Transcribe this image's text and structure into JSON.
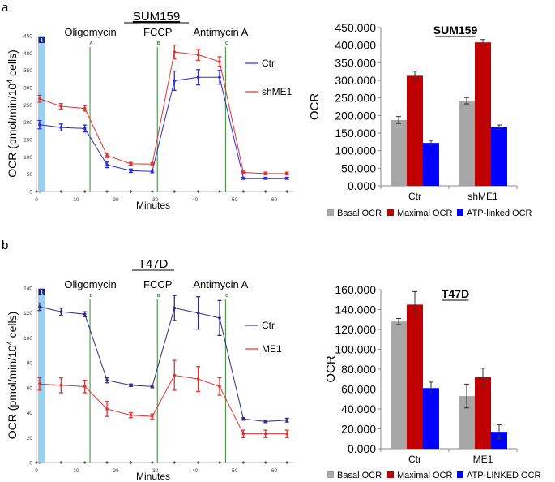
{
  "panels": {
    "a": {
      "label": "a",
      "title": "SUM159"
    },
    "b": {
      "label": "b",
      "title": "T47D"
    }
  },
  "chart_data": [
    {
      "id": "a-line",
      "type": "line",
      "title": "SUM159",
      "xlabel": "Minutes",
      "ylabel_main": "OCR (pmol/min/10",
      "ylabel_sup": "4",
      "ylabel_end": " cells)",
      "xlim": [
        0,
        65
      ],
      "ylim": [
        0,
        450
      ],
      "xticks": [
        0,
        10,
        20,
        30,
        40,
        50,
        60
      ],
      "yticks": [
        0,
        50,
        100,
        150,
        200,
        250,
        300,
        350,
        400,
        450
      ],
      "injections": [
        {
          "name": "Oligomycin",
          "port": "A",
          "x": 13.5
        },
        {
          "name": "FCCP",
          "port": "B",
          "x": 30.5
        },
        {
          "name": "Antimycin A",
          "port": "C",
          "x": 47.7
        }
      ],
      "marker_badge": "1",
      "series": [
        {
          "name": "Ctr",
          "color": "#2b2bd6",
          "x": [
            0.8,
            6.2,
            12.2,
            17.8,
            23.8,
            29.2,
            34.8,
            40.8,
            46.2,
            52.2,
            57.8,
            63.2
          ],
          "y": [
            193,
            185,
            182,
            77,
            60,
            58,
            320,
            330,
            330,
            38,
            38,
            38
          ],
          "err": [
            12,
            10,
            10,
            8,
            5,
            4,
            28,
            22,
            20,
            3,
            3,
            3
          ]
        },
        {
          "name": "shME1",
          "color": "#e53030",
          "x": [
            0.8,
            6.2,
            12.2,
            17.8,
            23.8,
            29.2,
            34.8,
            40.8,
            46.2,
            52.2,
            57.8,
            63.2
          ],
          "y": [
            268,
            246,
            240,
            104,
            80,
            79,
            403,
            395,
            375,
            55,
            52,
            52
          ],
          "err": [
            10,
            8,
            8,
            6,
            4,
            4,
            20,
            16,
            14,
            4,
            4,
            4
          ]
        }
      ]
    },
    {
      "id": "a-bar",
      "type": "bar",
      "title": "SUM159",
      "ylabel": "OCR",
      "categories": [
        "Ctr",
        "shME1"
      ],
      "ylim": [
        0,
        450
      ],
      "yticks": [
        0,
        50,
        100,
        150,
        200,
        250,
        300,
        350,
        400,
        450
      ],
      "ytick_labels": [
        "0.000",
        "50.000",
        "100.000",
        "150.000",
        "200.000",
        "250.000",
        "300.000",
        "350.000",
        "400.000",
        "450.000"
      ],
      "series": [
        {
          "name": "Basal OCR",
          "color": "#a6a6a6",
          "values": [
            187,
            242
          ],
          "err": [
            10,
            9
          ]
        },
        {
          "name": "Maximal OCR",
          "color": "#c00000",
          "values": [
            313,
            408
          ],
          "err": [
            13,
            8
          ]
        },
        {
          "name": "ATP-linked OCR",
          "color": "#0000ff",
          "values": [
            122,
            167
          ],
          "err": [
            7,
            6
          ]
        }
      ]
    },
    {
      "id": "b-line",
      "type": "line",
      "title": "T47D",
      "xlabel": "Minutes",
      "ylabel_main": "OCR (pmol/min/10",
      "ylabel_sup": "4",
      "ylabel_end": " cells)",
      "xlim": [
        0,
        65
      ],
      "ylim": [
        0,
        140
      ],
      "xticks": [
        0,
        10,
        20,
        30,
        40,
        50,
        60
      ],
      "yticks": [
        0,
        20,
        40,
        60,
        80,
        100,
        120,
        140
      ],
      "injections": [
        {
          "name": "Oligomycin",
          "port": "D",
          "x": 13.5
        },
        {
          "name": "FCCP",
          "port": "B",
          "x": 30.5
        },
        {
          "name": "Antimycin A",
          "port": "C",
          "x": 47.7
        }
      ],
      "marker_badge": "1",
      "series": [
        {
          "name": "Ctr",
          "color": "#2e2e80",
          "x": [
            0.8,
            6.2,
            12.2,
            17.8,
            23.8,
            29.2,
            34.8,
            40.8,
            46.2,
            52.2,
            57.8,
            63.2
          ],
          "y": [
            125,
            121,
            119,
            66,
            62,
            61,
            124,
            120,
            116,
            35,
            33,
            34
          ],
          "err": [
            3,
            3,
            2,
            2,
            1,
            1,
            10,
            13,
            14,
            1,
            1,
            1.5
          ]
        },
        {
          "name": "ME1",
          "color": "#e53030",
          "x": [
            0.8,
            6.2,
            12.2,
            17.8,
            23.8,
            29.2,
            34.8,
            40.8,
            46.2,
            52.2,
            57.8,
            63.2
          ],
          "y": [
            63,
            62,
            61,
            43,
            38,
            37,
            70,
            67,
            61,
            23,
            23,
            23
          ],
          "err": [
            5,
            6,
            5,
            6,
            2,
            2,
            12,
            10,
            7,
            3,
            3,
            3
          ]
        }
      ]
    },
    {
      "id": "b-bar",
      "type": "bar",
      "title": "T47D",
      "ylabel": "OCR",
      "categories": [
        "Ctr",
        "ME1"
      ],
      "ylim": [
        0,
        160
      ],
      "yticks": [
        0,
        20,
        40,
        60,
        80,
        100,
        120,
        140,
        160
      ],
      "ytick_labels": [
        "0.000",
        "20.000",
        "40.000",
        "60.000",
        "80.000",
        "100.000",
        "120.000",
        "140.000",
        "160.000"
      ],
      "series": [
        {
          "name": "Basal OCR",
          "color": "#a6a6a6",
          "values": [
            128,
            53
          ],
          "err": [
            3,
            12
          ]
        },
        {
          "name": "Maximal OCR",
          "color": "#c00000",
          "values": [
            145,
            72
          ],
          "err": [
            13,
            9
          ]
        },
        {
          "name": "ATP-LINKED OCR",
          "color": "#0000ff",
          "values": [
            61,
            17
          ],
          "err": [
            6,
            7
          ]
        }
      ]
    }
  ]
}
